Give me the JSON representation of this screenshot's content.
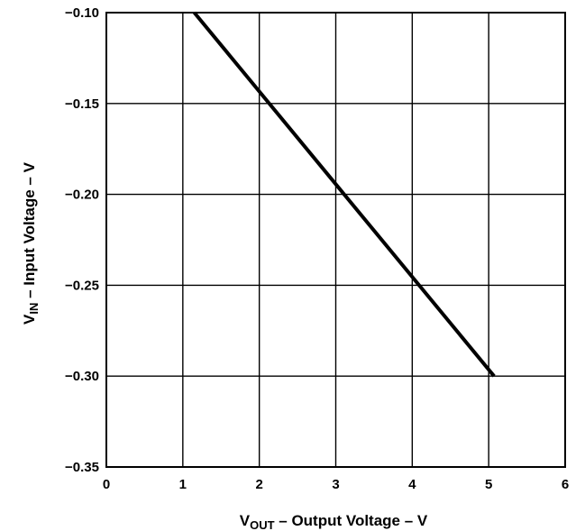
{
  "chart_data": {
    "type": "line",
    "title": "",
    "xlabel": {
      "main": "V",
      "sub": "OUT",
      "rest": " – Output Voltage – V"
    },
    "ylabel": {
      "main": "V",
      "sub": "IN",
      "rest": " – Input Voltage – V"
    },
    "xlim": [
      0,
      6
    ],
    "ylim": [
      -0.35,
      -0.1
    ],
    "grid": true,
    "x_ticks": [
      0,
      1,
      2,
      3,
      4,
      5,
      6
    ],
    "x_tick_labels": [
      "0",
      "1",
      "2",
      "3",
      "4",
      "5",
      "6"
    ],
    "y_ticks": [
      -0.1,
      -0.15,
      -0.2,
      -0.25,
      -0.3,
      -0.35
    ],
    "y_tick_labels": [
      "−0.10",
      "−0.15",
      "−0.20",
      "−0.25",
      "−0.30",
      "−0.35"
    ],
    "series": [
      {
        "x": [
          1.15,
          5.07
        ],
        "y": [
          -0.1,
          -0.3
        ]
      }
    ],
    "colors": {
      "line": "#000000",
      "grid": "#000000"
    }
  }
}
